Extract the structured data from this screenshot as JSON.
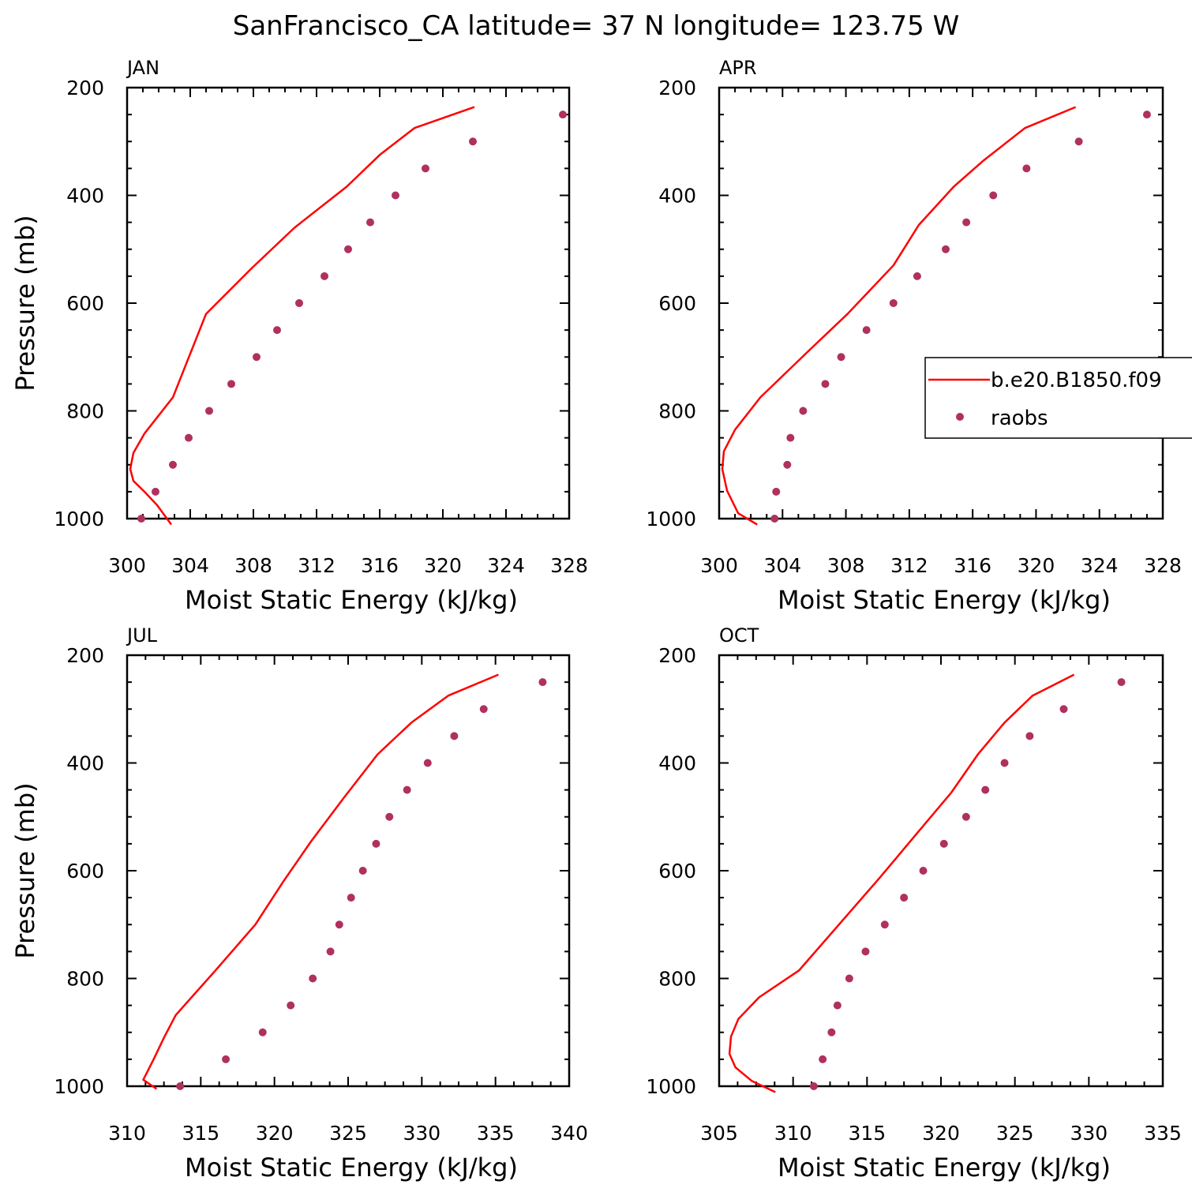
{
  "title": "SanFrancisco_CA  latitude= 37 N longitude= 123.75 W",
  "colors": {
    "model_line": "#ff0000",
    "raobs_marker": "#b03060",
    "axis": "#000000"
  },
  "legend": {
    "placement": "right side of APR panel",
    "entries": [
      {
        "label": "b.e20.B1850.f09",
        "style": "line",
        "color": "#ff0000"
      },
      {
        "label": "raobs",
        "style": "marker",
        "color": "#b03060"
      }
    ]
  },
  "chart_data": [
    {
      "type": "line",
      "panel_label": "JAN",
      "xlabel": "Moist Static Energy (kJ/kg)",
      "ylabel": "Pressure (mb)",
      "xlim": [
        300,
        328
      ],
      "ylim": [
        1000,
        200
      ],
      "xticks": [
        "300",
        "304",
        "308",
        "312",
        "316",
        "320",
        "324",
        "328"
      ],
      "yticks": [
        "200",
        "400",
        "600",
        "800",
        "1000"
      ],
      "series": [
        {
          "name": "b.e20.B1850.f09",
          "kind": "line",
          "points": [
            [
              322,
              236
            ],
            [
              318.2,
              275
            ],
            [
              316,
              325
            ],
            [
              313.9,
              384
            ],
            [
              310.6,
              460
            ],
            [
              307.9,
              535
            ],
            [
              305,
              620
            ],
            [
              302.9,
              775
            ],
            [
              301.1,
              842
            ],
            [
              300.4,
              878
            ],
            [
              300.2,
              908
            ],
            [
              300.4,
              930
            ],
            [
              301.1,
              950
            ],
            [
              301.9,
              975
            ],
            [
              302.8,
              1011
            ]
          ]
        },
        {
          "name": "raobs",
          "kind": "scatter",
          "points": [
            [
              327.6,
              250
            ],
            [
              321.9,
              300
            ],
            [
              318.9,
              350
            ],
            [
              317,
              400
            ],
            [
              315.4,
              450
            ],
            [
              314,
              500
            ],
            [
              312.5,
              550
            ],
            [
              310.9,
              600
            ],
            [
              309.5,
              650
            ],
            [
              308.2,
              700
            ],
            [
              306.6,
              750
            ],
            [
              305.2,
              800
            ],
            [
              303.9,
              850
            ],
            [
              302.9,
              900
            ],
            [
              301.8,
              950
            ],
            [
              300.9,
              1000
            ]
          ]
        }
      ]
    },
    {
      "type": "line",
      "panel_label": "APR",
      "xlabel": "Moist Static Energy (kJ/kg)",
      "ylabel": "",
      "xlim": [
        300,
        328
      ],
      "ylim": [
        1000,
        200
      ],
      "xticks": [
        "300",
        "304",
        "308",
        "312",
        "316",
        "320",
        "324",
        "328"
      ],
      "yticks": [
        "200",
        "400",
        "600",
        "800",
        "1000"
      ],
      "series": [
        {
          "name": "b.e20.B1850.f09",
          "kind": "line",
          "points": [
            [
              322.5,
              236
            ],
            [
              319.3,
              275
            ],
            [
              316.7,
              335
            ],
            [
              314.8,
              384
            ],
            [
              312.6,
              455
            ],
            [
              311,
              530
            ],
            [
              308.1,
              620
            ],
            [
              305.6,
              690
            ],
            [
              302.6,
              775
            ],
            [
              301,
              835
            ],
            [
              300.3,
              875
            ],
            [
              300.2,
              908
            ],
            [
              300.5,
              948
            ],
            [
              301.2,
              990
            ],
            [
              302.4,
              1011
            ]
          ]
        },
        {
          "name": "raobs",
          "kind": "scatter",
          "points": [
            [
              327,
              250
            ],
            [
              322.7,
              300
            ],
            [
              319.4,
              350
            ],
            [
              317.3,
              400
            ],
            [
              315.6,
              450
            ],
            [
              314.3,
              500
            ],
            [
              312.5,
              550
            ],
            [
              311,
              600
            ],
            [
              309.3,
              650
            ],
            [
              307.7,
              700
            ],
            [
              306.7,
              750
            ],
            [
              305.3,
              800
            ],
            [
              304.5,
              850
            ],
            [
              304.3,
              900
            ],
            [
              303.6,
              950
            ],
            [
              303.5,
              1000
            ]
          ]
        }
      ]
    },
    {
      "type": "line",
      "panel_label": "JUL",
      "xlabel": "Moist Static Energy (kJ/kg)",
      "ylabel": "Pressure (mb)",
      "xlim": [
        310,
        340
      ],
      "ylim": [
        1000,
        200
      ],
      "xticks": [
        "310",
        "315",
        "320",
        "325",
        "330",
        "335",
        "340"
      ],
      "yticks": [
        "200",
        "400",
        "600",
        "800",
        "1000"
      ],
      "series": [
        {
          "name": "b.e20.B1850.f09",
          "kind": "line",
          "points": [
            [
              335.2,
              236
            ],
            [
              331.8,
              275
            ],
            [
              329.3,
              325
            ],
            [
              327,
              384
            ],
            [
              324.7,
              465
            ],
            [
              322.5,
              545
            ],
            [
              320.6,
              620
            ],
            [
              318.7,
              700
            ],
            [
              316,
              785
            ],
            [
              313.3,
              868
            ],
            [
              312.5,
              910
            ],
            [
              311.8,
              950
            ],
            [
              311.1,
              988
            ],
            [
              312,
              1005
            ]
          ]
        },
        {
          "name": "raobs",
          "kind": "scatter",
          "points": [
            [
              338.2,
              250
            ],
            [
              334.2,
              300
            ],
            [
              332.2,
              350
            ],
            [
              330.4,
              400
            ],
            [
              329,
              450
            ],
            [
              327.8,
              500
            ],
            [
              326.9,
              550
            ],
            [
              326,
              600
            ],
            [
              325.2,
              650
            ],
            [
              324.4,
              700
            ],
            [
              323.8,
              750
            ],
            [
              322.6,
              800
            ],
            [
              321.1,
              850
            ],
            [
              319.2,
              900
            ],
            [
              316.7,
              950
            ],
            [
              313.6,
              1000
            ]
          ]
        }
      ]
    },
    {
      "type": "line",
      "panel_label": "OCT",
      "xlabel": "Moist Static Energy (kJ/kg)",
      "ylabel": "",
      "xlim": [
        305,
        335
      ],
      "ylim": [
        1000,
        200
      ],
      "xticks": [
        "305",
        "310",
        "315",
        "320",
        "325",
        "330",
        "335"
      ],
      "yticks": [
        "200",
        "400",
        "600",
        "800",
        "1000"
      ],
      "series": [
        {
          "name": "b.e20.B1850.f09",
          "kind": "line",
          "points": [
            [
              329,
              236
            ],
            [
              326.2,
              275
            ],
            [
              324.3,
              325
            ],
            [
              322.5,
              384
            ],
            [
              320.7,
              455
            ],
            [
              318.4,
              530
            ],
            [
              315.8,
              615
            ],
            [
              313.1,
              700
            ],
            [
              310.4,
              785
            ],
            [
              307.7,
              835
            ],
            [
              306.3,
              875
            ],
            [
              305.8,
              908
            ],
            [
              305.7,
              940
            ],
            [
              306.1,
              965
            ],
            [
              307.2,
              990
            ],
            [
              308.8,
              1011
            ]
          ]
        },
        {
          "name": "raobs",
          "kind": "scatter",
          "points": [
            [
              332.2,
              250
            ],
            [
              328.3,
              300
            ],
            [
              326,
              350
            ],
            [
              324.3,
              400
            ],
            [
              323,
              450
            ],
            [
              321.7,
              500
            ],
            [
              320.2,
              550
            ],
            [
              318.8,
              600
            ],
            [
              317.5,
              650
            ],
            [
              316.2,
              700
            ],
            [
              314.9,
              750
            ],
            [
              313.8,
              800
            ],
            [
              313,
              850
            ],
            [
              312.6,
              900
            ],
            [
              312,
              950
            ],
            [
              311.4,
              1000
            ]
          ]
        }
      ]
    }
  ]
}
